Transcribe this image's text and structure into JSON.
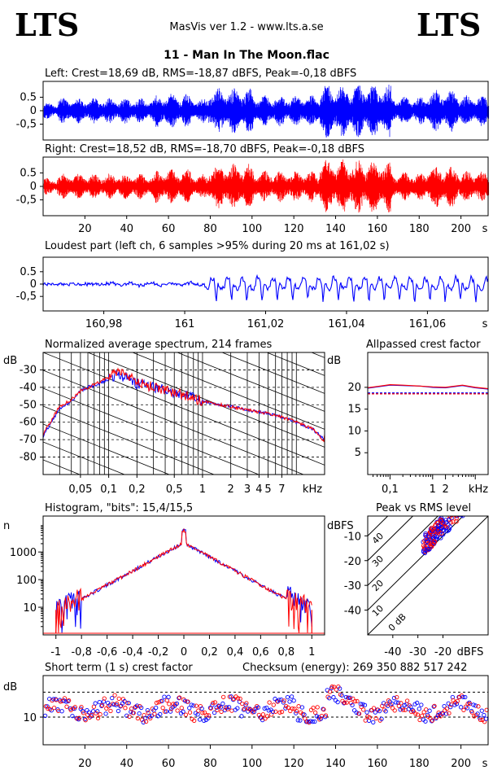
{
  "header": {
    "logo_left": "LTS",
    "logo_right": "LTS",
    "app_title": "MasVis ver 1.2 - www.lts.a.se",
    "file_title": "11 - Man In The Moon.flac"
  },
  "colors": {
    "left": "#0000ff",
    "right": "#ff0000",
    "grid": "#000000"
  },
  "chart_data": [
    {
      "id": "left-waveform",
      "type": "line",
      "title": "Left: Crest=18,69 dB, RMS=-18,87 dBFS, Peak=-0,18 dBFS",
      "yticks": [
        "0.5",
        "0",
        "-0,5"
      ],
      "ylim": [
        -1,
        1
      ],
      "xlim": [
        0,
        213
      ],
      "series": [
        {
          "color": "#0000ff"
        }
      ]
    },
    {
      "id": "right-waveform",
      "type": "line",
      "title": "Right: Crest=18,52 dB, RMS=-18,70 dBFS, Peak=-0,18 dBFS",
      "yticks": [
        "0.5",
        "0",
        "-0,5"
      ],
      "ylim": [
        -1,
        1
      ],
      "xlim": [
        0,
        213
      ],
      "xticks": [
        "20",
        "40",
        "60",
        "80",
        "100",
        "120",
        "140",
        "160",
        "180",
        "200"
      ],
      "xunit": "s",
      "series": [
        {
          "color": "#ff0000"
        }
      ]
    },
    {
      "id": "loudest-part",
      "type": "line",
      "title": "Loudest part (left  ch, 6 samples >95% during 20 ms at 161,02 s)",
      "yticks": [
        "0.5",
        "0",
        "-0,5"
      ],
      "ylim": [
        -1,
        1
      ],
      "xticks": [
        "160,98",
        "161",
        "161,02",
        "161,04",
        "161,06"
      ],
      "xunit": "s",
      "xlim": [
        160.965,
        161.075
      ],
      "series": [
        {
          "color": "#0000ff"
        }
      ]
    },
    {
      "id": "spectrum",
      "type": "line",
      "title": "Normalized average spectrum, 214 frames",
      "ylabel": "dB",
      "yticks": [
        "-30",
        "-40",
        "-50",
        "-60",
        "-70",
        "-80"
      ],
      "xticks": [
        "0,05",
        "0,1",
        "0,2",
        "0,5",
        "1",
        "2",
        "3",
        "4",
        "5",
        "7"
      ],
      "xunit": "kHz",
      "x_scale": "log",
      "xlim": [
        0.02,
        20
      ],
      "ylim": [
        -90,
        -20
      ],
      "series": [
        {
          "color": "#0000ff",
          "x": [
            0.02,
            0.03,
            0.04,
            0.05,
            0.06,
            0.08,
            0.1,
            0.12,
            0.15,
            0.2,
            0.3,
            0.5,
            0.7,
            1,
            2,
            3,
            5,
            7,
            10,
            15,
            20
          ],
          "y": [
            -68,
            -52,
            -48,
            -42,
            -40,
            -38,
            -35,
            -33,
            -34,
            -38,
            -40,
            -43,
            -45,
            -48,
            -51,
            -53,
            -55,
            -57,
            -60,
            -64,
            -70
          ]
        },
        {
          "color": "#ff0000",
          "x": [
            0.02,
            0.03,
            0.04,
            0.05,
            0.06,
            0.08,
            0.1,
            0.12,
            0.15,
            0.2,
            0.3,
            0.5,
            0.7,
            1,
            2,
            3,
            5,
            7,
            10,
            15,
            20
          ],
          "y": [
            -67,
            -51,
            -47,
            -42,
            -40,
            -37,
            -34,
            -31,
            -33,
            -37,
            -40,
            -43,
            -45,
            -48,
            -51,
            -53,
            -55,
            -57,
            -60,
            -64,
            -71
          ]
        }
      ]
    },
    {
      "id": "allpassed-crest",
      "type": "line",
      "title": "Allpassed crest factor",
      "ylabel": "dB",
      "yticks": [
        "20",
        "15",
        "10",
        "5"
      ],
      "ylim": [
        0,
        28
      ],
      "xticks": [
        "0,1",
        "1",
        "2"
      ],
      "xunit": "kHz",
      "x_scale": "log",
      "xlim": [
        0.03,
        20
      ],
      "series": [
        {
          "color": "#0000ff",
          "x": [
            0.03,
            0.05,
            0.1,
            0.2,
            0.5,
            1,
            2,
            5,
            10,
            20
          ],
          "y": [
            19.8,
            20.1,
            20.5,
            20.4,
            20.3,
            20.0,
            19.9,
            20.4,
            19.9,
            19.6
          ]
        },
        {
          "color": "#ff0000",
          "x": [
            0.03,
            0.05,
            0.1,
            0.2,
            0.5,
            1,
            2,
            5,
            10,
            20
          ],
          "y": [
            19.9,
            20.2,
            20.6,
            20.5,
            20.3,
            20.1,
            20.0,
            20.5,
            20.0,
            19.7
          ]
        }
      ],
      "ref_lines": [
        {
          "color": "#0000ff",
          "y": 18.7
        },
        {
          "color": "#ff0000",
          "y": 18.5
        }
      ]
    },
    {
      "id": "histogram",
      "type": "line",
      "title": "Histogram, \"bits\": 15,4/15,5",
      "ylabel": "n",
      "yticks": [
        "1000",
        "100",
        "10"
      ],
      "y_scale": "log",
      "ylim": [
        1,
        20000
      ],
      "xticks": [
        "-1",
        "-0,8",
        "-0,6",
        "-0,4",
        "-0,2",
        "0",
        "0,2",
        "0,4",
        "0,6",
        "0,8",
        "1"
      ],
      "xlim": [
        -1.1,
        1.1
      ]
    },
    {
      "id": "peak-vs-rms",
      "type": "scatter",
      "title": "Peak vs RMS level",
      "ylabel": "dBFS",
      "yticks": [
        "-10",
        "-20",
        "-30",
        "-40"
      ],
      "ylim": [
        -50,
        -2
      ],
      "xlabel": "dBFS",
      "xticks": [
        "-40",
        "-30",
        "-20"
      ],
      "xlim": [
        -50,
        -2
      ],
      "diag_labels": [
        "40",
        "30",
        "20",
        "10",
        "0 dB"
      ]
    },
    {
      "id": "short-term-crest",
      "type": "scatter",
      "title": "Short term (1 s) crest factor",
      "annotation": "Checksum (energy):   269 350 882 517 242",
      "ylabel": "dB",
      "yticks": [
        "10"
      ],
      "ylim": [
        0,
        25
      ],
      "xticks": [
        "20",
        "40",
        "60",
        "80",
        "100",
        "120",
        "140",
        "160",
        "180",
        "200"
      ],
      "xunit": "s",
      "xlim": [
        0,
        213
      ],
      "ref_lines": [
        {
          "y": 19
        },
        {
          "y": 10
        }
      ]
    }
  ]
}
